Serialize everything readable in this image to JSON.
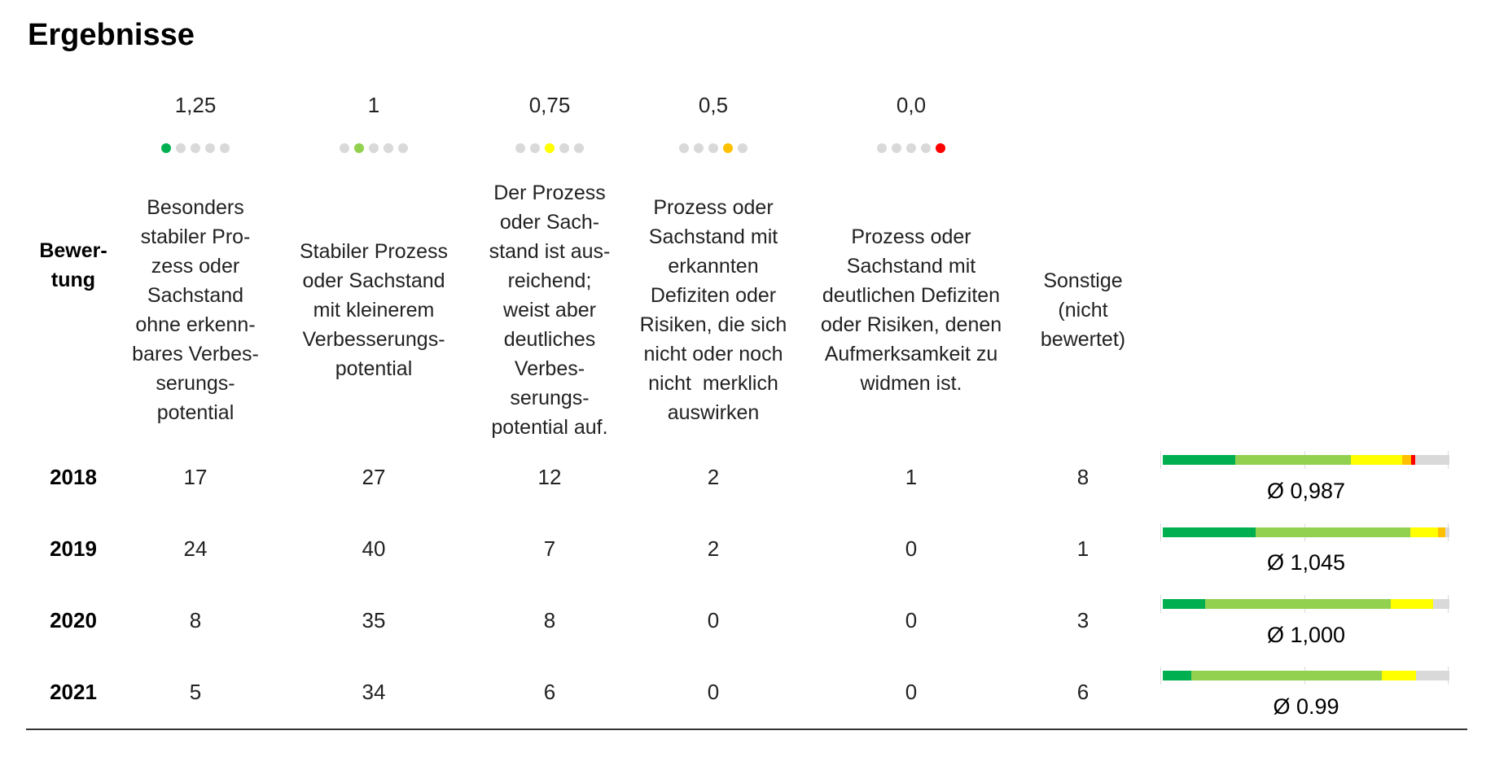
{
  "page": {
    "title": "Ergebnisse"
  },
  "columns": [
    {
      "score": "1,25",
      "dots": [
        "#00b050",
        "#d9d9d9",
        "#d9d9d9",
        "#d9d9d9",
        "#d9d9d9"
      ],
      "description": "Besonders\nstabiler Pro-\nzess oder\nSachstand\nohne erkenn-\nbares Verbes-\nserungs-\npotential"
    },
    {
      "score": "1",
      "dots": [
        "#d9d9d9",
        "#92d050",
        "#d9d9d9",
        "#d9d9d9",
        "#d9d9d9"
      ],
      "description": "Stabiler Prozess\noder Sachstand\nmit kleinerem\nVerbesserungs-\npotential"
    },
    {
      "score": "0,75",
      "dots": [
        "#d9d9d9",
        "#d9d9d9",
        "#ffff00",
        "#d9d9d9",
        "#d9d9d9"
      ],
      "description": "Der Prozess\noder Sach-\nstand ist aus-\nreichend;\nweist aber\ndeutliches\nVerbes-\nserungs-\npotential auf."
    },
    {
      "score": "0,5",
      "dots": [
        "#d9d9d9",
        "#d9d9d9",
        "#d9d9d9",
        "#ffc000",
        "#d9d9d9"
      ],
      "description": "Prozess oder\nSachstand mit\nerkannten\nDefiziten oder\nRisiken, die sich\nnicht oder noch\nnicht  merklich\nauswirken"
    },
    {
      "score": "0,0",
      "dots": [
        "#d9d9d9",
        "#d9d9d9",
        "#d9d9d9",
        "#d9d9d9",
        "#ff0000"
      ],
      "description": "Prozess oder\nSachstand mit\ndeutlichen Defiziten\noder Risiken, denen\nAufmerksamkeit zu\nwidmen ist."
    },
    {
      "score": "",
      "dots": [],
      "description": "Sonstige\n(nicht\nbewertet)"
    }
  ],
  "row_header_label": "Bewer-\ntung",
  "segment_colors": [
    "#00b050",
    "#92d050",
    "#ffff00",
    "#ffc000",
    "#ff0000",
    "#d9d9d9"
  ],
  "rows": [
    {
      "year": "2018",
      "values": [
        "17",
        "27",
        "12",
        "2",
        "1",
        "8"
      ],
      "counts": [
        17,
        27,
        12,
        2,
        1,
        8
      ],
      "average": "Ø 0,987"
    },
    {
      "year": "2019",
      "values": [
        "24",
        "40",
        "7",
        "2",
        "0",
        "1"
      ],
      "counts": [
        24,
        40,
        7,
        2,
        0,
        1
      ],
      "average": "Ø 1,045"
    },
    {
      "year": "2020",
      "values": [
        "8",
        "35",
        "8",
        "0",
        "0",
        "3"
      ],
      "counts": [
        8,
        35,
        8,
        0,
        0,
        3
      ],
      "average": "Ø 1,000"
    },
    {
      "year": "2021",
      "values": [
        "5",
        "34",
        "6",
        "0",
        "0",
        "6"
      ],
      "counts": [
        5,
        34,
        6,
        0,
        0,
        6
      ],
      "average": "Ø 0.99"
    }
  ]
}
